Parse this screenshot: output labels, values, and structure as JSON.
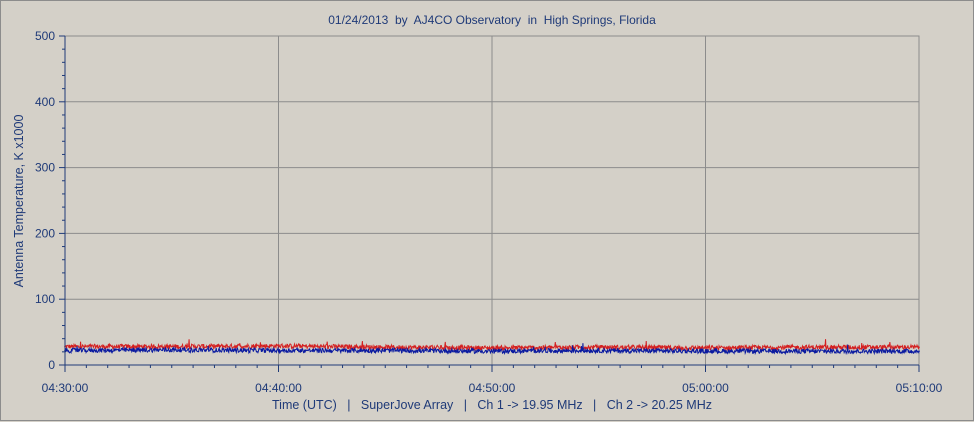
{
  "chart_data": {
    "type": "line",
    "title": "01/24/2013  by  AJ4CO Observatory  in  High Springs, Florida",
    "xlabel": "Time (UTC)   |   SuperJove Array   |   Ch 1 -> 19.95 MHz   |   Ch 2 -> 20.25 MHz",
    "ylabel": "Antenna Temperature, K x1000",
    "x_ticks": [
      "04:30:00",
      "04:40:00",
      "04:50:00",
      "05:00:00",
      "05:10:00"
    ],
    "xlim": [
      "04:30:00",
      "05:10:00"
    ],
    "y_ticks": [
      0,
      100,
      200,
      300,
      400,
      500
    ],
    "ylim": [
      0,
      500
    ],
    "grid": true,
    "series": [
      {
        "color": "#d42020",
        "x": [
          "04:30:00",
          "04:35:00",
          "04:40:00",
          "04:45:00",
          "04:50:00",
          "04:55:00",
          "05:00:00",
          "05:05:00",
          "05:10:00"
        ],
        "values": [
          28,
          28,
          29,
          27,
          26,
          27,
          26,
          27,
          27
        ]
      },
      {
        "color": "#0a1aa0",
        "x": [
          "04:30:00",
          "04:35:00",
          "04:40:00",
          "04:45:00",
          "04:50:00",
          "04:55:00",
          "05:00:00",
          "05:05:00",
          "05:10:00"
        ],
        "values": [
          22,
          23,
          22,
          22,
          21,
          22,
          21,
          21,
          21
        ]
      }
    ]
  }
}
